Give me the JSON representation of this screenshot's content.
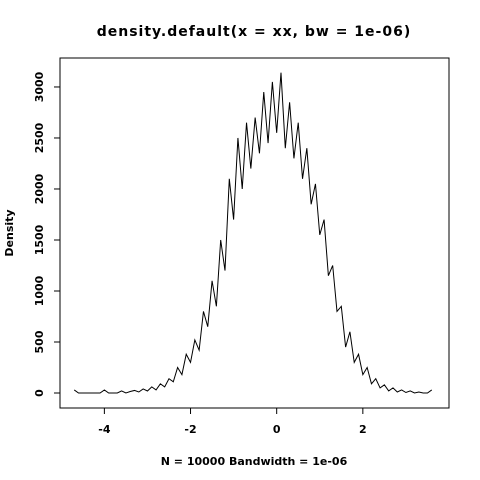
{
  "chart_data": {
    "type": "line",
    "title": "density.default(x = xx, bw = 1e-06)",
    "x_label": "N = 10000   Bandwidth = 1e-06",
    "y_label": "Density",
    "x": [
      -4.7,
      -4.6,
      -4.5,
      -4.4,
      -4.3,
      -4.2,
      -4.1,
      -4.0,
      -3.9,
      -3.8,
      -3.7,
      -3.6,
      -3.5,
      -3.4,
      -3.3,
      -3.2,
      -3.1,
      -3.0,
      -2.9,
      -2.8,
      -2.7,
      -2.6,
      -2.5,
      -2.4,
      -2.3,
      -2.2,
      -2.1,
      -2.0,
      -1.9,
      -1.8,
      -1.7,
      -1.6,
      -1.5,
      -1.4,
      -1.3,
      -1.2,
      -1.1,
      -1.0,
      -0.9,
      -0.8,
      -0.7,
      -0.6,
      -0.5,
      -0.4,
      -0.3,
      -0.2,
      -0.1,
      0.0,
      0.1,
      0.2,
      0.3,
      0.4,
      0.5,
      0.6,
      0.7,
      0.8,
      0.9,
      1.0,
      1.1,
      1.2,
      1.3,
      1.4,
      1.5,
      1.6,
      1.7,
      1.8,
      1.9,
      2.0,
      2.1,
      2.2,
      2.3,
      2.4,
      2.5,
      2.6,
      2.7,
      2.8,
      2.9,
      3.0,
      3.1,
      3.2,
      3.3,
      3.4,
      3.5,
      3.6
    ],
    "series": [
      {
        "color": "#000000",
        "values": [
          30,
          0,
          0,
          0,
          0,
          0,
          0,
          30,
          0,
          0,
          0,
          20,
          0,
          15,
          25,
          10,
          40,
          20,
          60,
          30,
          90,
          60,
          140,
          110,
          250,
          180,
          380,
          300,
          520,
          420,
          800,
          650,
          1100,
          850,
          1500,
          1200,
          2100,
          1700,
          2500,
          2000,
          2650,
          2200,
          2700,
          2350,
          2950,
          2450,
          3050,
          2550,
          3140,
          2400,
          2850,
          2300,
          2650,
          2100,
          2400,
          1850,
          2050,
          1550,
          1700,
          1150,
          1250,
          800,
          850,
          450,
          600,
          300,
          380,
          180,
          250,
          90,
          140,
          50,
          80,
          20,
          50,
          10,
          30,
          5,
          20,
          0,
          10,
          0,
          0,
          30
        ]
      }
    ],
    "xlim": [
      -5.03,
      4.0
    ],
    "ylim": [
      -147,
      3284
    ],
    "xticks": [
      -4,
      -2,
      0,
      2
    ],
    "yticks": [
      0,
      500,
      1000,
      1500,
      2000,
      2500,
      3000
    ]
  }
}
